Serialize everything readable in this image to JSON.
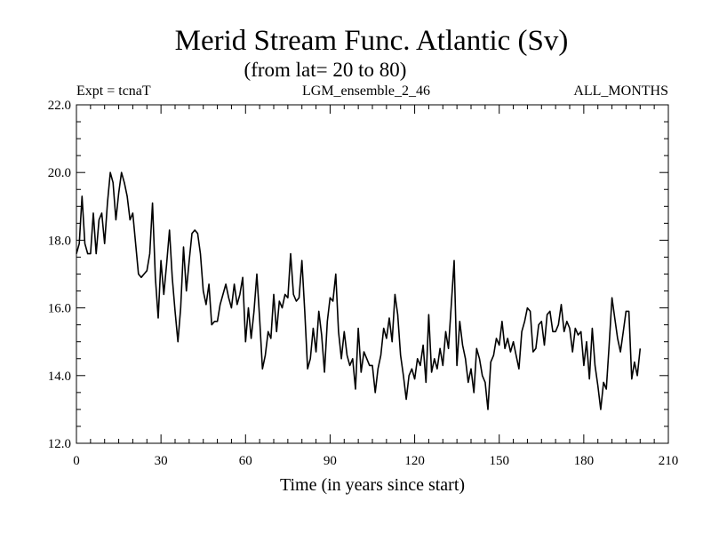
{
  "chart_data": {
    "type": "line",
    "title": "Merid Stream Func. Atlantic (Sv)",
    "subtitle": "(from lat= 20 to 80)",
    "header_left": "Expt = tcnaT",
    "header_center": "LGM_ensemble_2_46",
    "header_right": "ALL_MONTHS",
    "xlabel": "Time (in years since start)",
    "ylabel": "",
    "xlim": [
      0,
      210
    ],
    "ylim": [
      12.0,
      22.0
    ],
    "xticks": [
      0,
      30,
      60,
      90,
      120,
      150,
      180,
      210
    ],
    "xtick_labels": [
      "0",
      "30",
      "60",
      "90",
      "120",
      "150",
      "180",
      "210"
    ],
    "yticks": [
      12.0,
      14.0,
      16.0,
      18.0,
      20.0,
      22.0
    ],
    "ytick_labels": [
      "12.0",
      "14.0",
      "16.0",
      "18.0",
      "20.0",
      "22.0"
    ],
    "series": [
      {
        "name": "Merid Stream Func.",
        "x_start": 0,
        "x_step": 1,
        "values": [
          17.6,
          17.9,
          19.3,
          17.9,
          17.6,
          17.6,
          18.8,
          17.6,
          18.6,
          18.8,
          17.9,
          19.1,
          20.0,
          19.7,
          18.6,
          19.4,
          20.0,
          19.7,
          19.3,
          18.6,
          18.8,
          17.9,
          17.0,
          16.9,
          17.0,
          17.1,
          17.6,
          19.1,
          16.9,
          15.7,
          17.4,
          16.4,
          17.3,
          18.3,
          16.9,
          15.9,
          15.0,
          16.0,
          17.8,
          16.5,
          17.4,
          18.2,
          18.3,
          18.2,
          17.6,
          16.5,
          16.1,
          16.7,
          15.5,
          15.6,
          15.6,
          16.1,
          16.4,
          16.7,
          16.3,
          16.0,
          16.7,
          16.1,
          16.4,
          16.9,
          15.0,
          16.0,
          15.1,
          15.9,
          17.0,
          15.7,
          14.2,
          14.6,
          15.3,
          15.1,
          16.4,
          15.3,
          16.2,
          16.0,
          16.4,
          16.3,
          17.6,
          16.4,
          16.2,
          16.3,
          17.4,
          15.9,
          14.2,
          14.5,
          15.4,
          14.7,
          15.9,
          15.2,
          14.1,
          15.6,
          16.3,
          16.2,
          17.0,
          15.3,
          14.5,
          15.3,
          14.6,
          14.3,
          14.5,
          13.6,
          15.4,
          14.1,
          14.7,
          14.5,
          14.3,
          14.3,
          13.5,
          14.2,
          14.6,
          15.4,
          15.1,
          15.7,
          15.0,
          16.4,
          15.8,
          14.6,
          14.0,
          13.3,
          14.0,
          14.2,
          13.9,
          14.5,
          14.3,
          14.9,
          13.8,
          15.8,
          14.1,
          14.5,
          14.2,
          14.8,
          14.3,
          15.3,
          14.8,
          16.1,
          17.4,
          14.3,
          15.6,
          14.9,
          14.5,
          13.8,
          14.2,
          13.5,
          14.8,
          14.5,
          14.0,
          13.8,
          13.0,
          14.4,
          14.6,
          15.1,
          14.9,
          15.6,
          14.8,
          15.1,
          14.7,
          15.0,
          14.6,
          14.2,
          15.3,
          15.6,
          16.0,
          15.9,
          14.7,
          14.8,
          15.5,
          15.6,
          14.9,
          15.8,
          15.9,
          15.3,
          15.3,
          15.5,
          16.1,
          15.3,
          15.6,
          15.4,
          14.7,
          15.4,
          15.2,
          15.3,
          14.3,
          15.0,
          13.9,
          15.4,
          14.3,
          13.7,
          13.0,
          13.8,
          13.6,
          14.9,
          16.3,
          15.7,
          15.1,
          14.7,
          15.3,
          15.9,
          15.9,
          13.9,
          14.4,
          14.0,
          14.8
        ]
      }
    ]
  }
}
